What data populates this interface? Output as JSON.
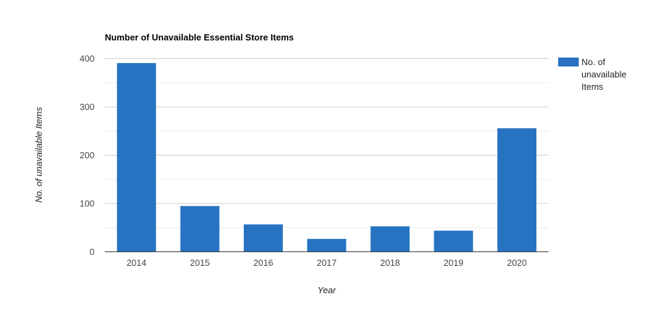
{
  "chart_data": {
    "type": "bar",
    "title": "Number of Unavailable Essential Store Items",
    "xlabel": "Year",
    "ylabel": "No. of unavailable Items",
    "categories": [
      "2014",
      "2015",
      "2016",
      "2017",
      "2018",
      "2019",
      "2020"
    ],
    "series": [
      {
        "name": "No. of unavailable Items",
        "legend_lines": [
          "No. of",
          "unavailable",
          "Items"
        ],
        "color": "#2773c2",
        "values": [
          390,
          94,
          56,
          26,
          52,
          43,
          255
        ]
      }
    ],
    "ylim": [
      0,
      400
    ],
    "yticks": [
      0,
      100,
      200,
      300,
      400
    ],
    "grid": true,
    "legend_position": "right"
  }
}
